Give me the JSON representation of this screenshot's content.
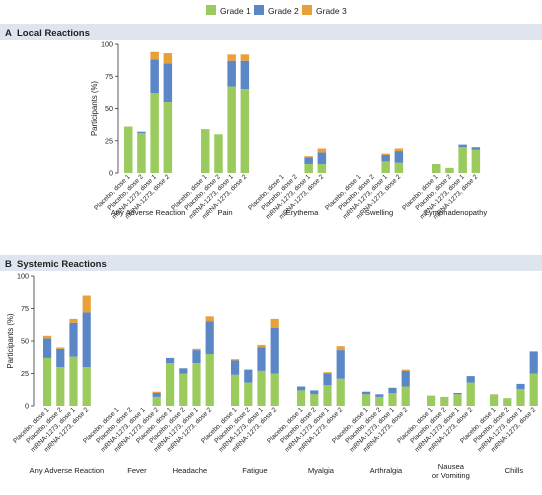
{
  "colors": {
    "grade1": "#9bcb5e",
    "grade2": "#5b87c6",
    "grade3": "#e8a13a",
    "panel_header": "#dfe5ee",
    "axis": "#333333"
  },
  "legend": [
    {
      "label": "Grade 1",
      "color_key": "grade1"
    },
    {
      "label": "Grade 2",
      "color_key": "grade2"
    },
    {
      "label": "Grade 3",
      "color_key": "grade3"
    }
  ],
  "chart_data": [
    {
      "panel": "A",
      "type": "bar",
      "stacked": true,
      "title": "Local Reactions",
      "ylabel": "Participants (%)",
      "ylim": [
        0,
        100
      ],
      "yticks": [
        0,
        25,
        50,
        75,
        100
      ],
      "bar_labels": [
        "Placebo, dose 1",
        "Placebo, dose 2",
        "mRNA-1273, dose 1",
        "mRNA-1273, dose 2"
      ],
      "series_order": [
        "Grade 1",
        "Grade 2",
        "Grade 3"
      ],
      "groups": [
        {
          "name": "Any Adverse Reaction",
          "bars": [
            [
              36,
              0,
              0
            ],
            [
              31,
              1,
              0
            ],
            [
              62,
              26,
              6
            ],
            [
              55,
              30,
              8
            ]
          ]
        },
        {
          "name": "Pain",
          "bars": [
            [
              34,
              0,
              0
            ],
            [
              30,
              0,
              0
            ],
            [
              67,
              20,
              5
            ],
            [
              65,
              22,
              5
            ]
          ]
        },
        {
          "name": "Erythema",
          "bars": [
            [
              0,
              0,
              0
            ],
            [
              0,
              0,
              0
            ],
            [
              7,
              5,
              1
            ],
            [
              7,
              9,
              3
            ]
          ]
        },
        {
          "name": "Swelling",
          "bars": [
            [
              0,
              0,
              0
            ],
            [
              0,
              0,
              0
            ],
            [
              9,
              5,
              1
            ],
            [
              8,
              9,
              2
            ]
          ]
        },
        {
          "name": "Lymphadenopathy",
          "bars": [
            [
              7,
              0,
              0
            ],
            [
              4,
              0,
              0
            ],
            [
              20,
              2,
              0
            ],
            [
              18,
              2,
              0
            ]
          ]
        }
      ]
    },
    {
      "panel": "B",
      "type": "bar",
      "stacked": true,
      "title": "Systemic Reactions",
      "ylabel": "Participants (%)",
      "ylim": [
        0,
        100
      ],
      "yticks": [
        0,
        25,
        50,
        75,
        100
      ],
      "bar_labels": [
        "Placebo, dose 1",
        "Placebo, dose 2",
        "mRNA-1273, dose 1",
        "mRNA-1273, dose 2"
      ],
      "series_order": [
        "Grade 1",
        "Grade 2",
        "Grade 3"
      ],
      "groups": [
        {
          "name": "Any Adverse Reaction",
          "bars": [
            [
              37,
              15,
              2
            ],
            [
              30,
              14,
              1
            ],
            [
              38,
              26,
              3
            ],
            [
              30,
              42,
              13
            ]
          ]
        },
        {
          "name": "Fever",
          "bars": [
            [
              0,
              0,
              0
            ],
            [
              0,
              0,
              0
            ],
            [
              0,
              0,
              0
            ],
            [
              7,
              3,
              1
            ]
          ]
        },
        {
          "name": "Headache",
          "bars": [
            [
              33,
              4,
              0
            ],
            [
              25,
              4,
              0
            ],
            [
              33,
              10,
              1
            ],
            [
              40,
              25,
              4
            ]
          ]
        },
        {
          "name": "Fatigue",
          "bars": [
            [
              24,
              11,
              1
            ],
            [
              18,
              10,
              0
            ],
            [
              27,
              18,
              2
            ],
            [
              25,
              35,
              7
            ]
          ]
        },
        {
          "name": "Myalgia",
          "bars": [
            [
              12,
              3,
              0
            ],
            [
              9,
              3,
              0
            ],
            [
              16,
              9,
              1
            ],
            [
              21,
              22,
              3
            ]
          ]
        },
        {
          "name": "Arthralgia",
          "bars": [
            [
              9,
              2,
              0
            ],
            [
              7,
              2,
              0
            ],
            [
              10,
              4,
              0
            ],
            [
              15,
              12,
              1
            ]
          ]
        },
        {
          "name": "Nausea or Vomiting",
          "bars": [
            [
              8,
              0,
              0
            ],
            [
              7,
              0,
              0
            ],
            [
              9,
              1,
              0
            ],
            [
              18,
              5,
              0
            ]
          ]
        },
        {
          "name": "Chills",
          "bars": [
            [
              9,
              0,
              0
            ],
            [
              6,
              0,
              0
            ],
            [
              13,
              4,
              0
            ],
            [
              25,
              17,
              0
            ]
          ]
        }
      ]
    }
  ]
}
